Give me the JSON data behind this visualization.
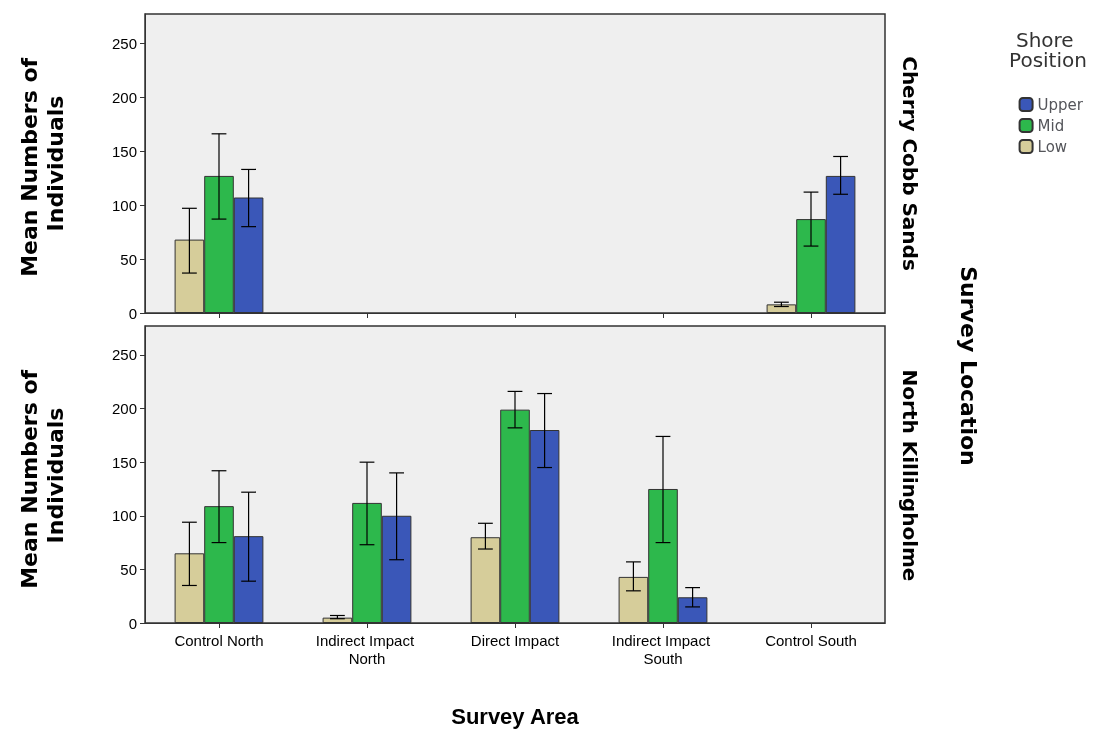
{
  "chart_data": [
    {
      "type": "bar",
      "ylabel": "Mean Numbers of Individuals",
      "y2label": "Cherry Cobb Sands",
      "legend_title": "Shore Position",
      "legend": "right",
      "tick_labels": "y",
      "annotations": [
        "Survey Location"
      ],
      "categories": [
        "Control North",
        "Indirect Impact North",
        "Direct Impact",
        "Indirect Impact South",
        "Control South"
      ],
      "ylim": [
        0,
        277
      ],
      "yticks": [
        0,
        50,
        100,
        150,
        200,
        250
      ],
      "grid": false,
      "series": [
        {
          "name": "Low",
          "color": "#d6cd9a",
          "values": [
            68,
            null,
            null,
            null,
            8
          ],
          "errors": [
            [
              37,
              97
            ],
            null,
            null,
            null,
            [
              6,
              10
            ]
          ]
        },
        {
          "name": "Mid",
          "color": "#2db84c",
          "values": [
            127,
            null,
            null,
            null,
            87
          ],
          "errors": [
            [
              87,
              166
            ],
            null,
            null,
            null,
            [
              62,
              112
            ]
          ]
        },
        {
          "name": "Upper",
          "color": "#3a57b8",
          "values": [
            107,
            null,
            null,
            null,
            127
          ],
          "errors": [
            [
              80,
              133
            ],
            null,
            null,
            null,
            [
              110,
              145
            ]
          ]
        }
      ]
    },
    {
      "type": "bar",
      "ylabel": "Mean Numbers of Individuals",
      "y2label": "North Killingholme",
      "xlabel": "Survey Area",
      "categories": [
        "Control North",
        "Indirect Impact North",
        "Direct Impact",
        "Indirect Impact South",
        "Control South"
      ],
      "ylim": [
        0,
        277
      ],
      "yticks": [
        0,
        50,
        100,
        150,
        200,
        250
      ],
      "grid": false,
      "series": [
        {
          "color": "#d6cd9a",
          "values": [
            65,
            5,
            80,
            43,
            null
          ],
          "errors": [
            [
              35,
              94
            ],
            [
              4,
              7
            ],
            [
              69,
              93
            ],
            [
              30,
              57
            ],
            null
          ]
        },
        {
          "color": "#2db84c",
          "values": [
            109,
            112,
            199,
            125,
            null
          ],
          "errors": [
            [
              75,
              142
            ],
            [
              73,
              150
            ],
            [
              182,
              216
            ],
            [
              75,
              174
            ],
            null
          ]
        },
        {
          "color": "#3a57b8",
          "values": [
            81,
            100,
            180,
            24,
            null
          ],
          "errors": [
            [
              39,
              122
            ],
            [
              59,
              140
            ],
            [
              145,
              214
            ],
            [
              15,
              33
            ],
            null
          ]
        }
      ]
    }
  ]
}
